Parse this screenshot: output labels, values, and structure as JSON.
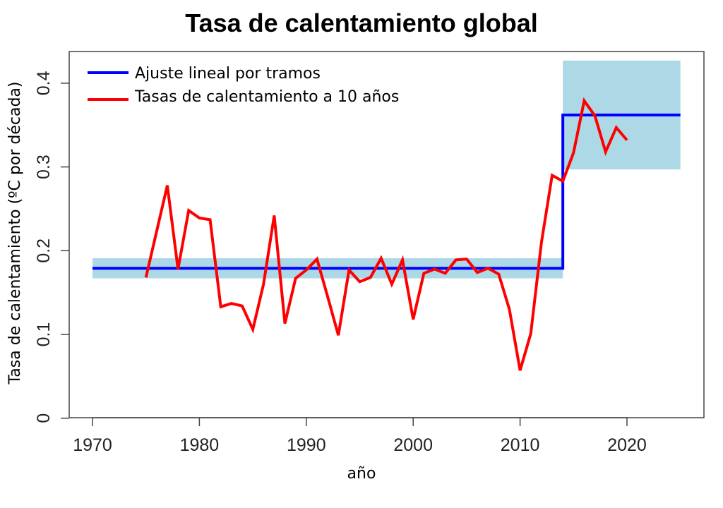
{
  "chart_data": {
    "type": "line",
    "title": "Tasa de calentamiento global",
    "xlabel": "año",
    "ylabel": "Tasa de calentamiento (ºC por década)",
    "xlim": [
      1967.8,
      2027.3
    ],
    "ylim": [
      0,
      0.437
    ],
    "x_ticks": [
      "1970",
      "1980",
      "1990",
      "2000",
      "2010",
      "2020"
    ],
    "y_ticks": [
      "0",
      "0.1",
      "0.2",
      "0.3",
      "0.4"
    ],
    "grid": false,
    "legend_position": "top-left",
    "colors": {
      "fit": "#0000ff",
      "rates": "#ff0000",
      "band": "#add8e6"
    },
    "series": [
      {
        "name": "Ajuste lineal por tramos",
        "type": "step",
        "segments": [
          {
            "x_start": 1970,
            "x_end": 2014,
            "value": 0.179,
            "band": [
              0.167,
              0.191
            ]
          },
          {
            "x_start": 2014,
            "x_end": 2025,
            "value": 0.362,
            "band": [
              0.297,
              0.427
            ]
          }
        ]
      },
      {
        "name": "Tasas de calentamiento a 10 años",
        "x": [
          1975,
          1976,
          1977,
          1978,
          1979,
          1980,
          1981,
          1982,
          1983,
          1984,
          1985,
          1986,
          1987,
          1988,
          1989,
          1990,
          1991,
          1992,
          1993,
          1994,
          1995,
          1996,
          1997,
          1998,
          1999,
          2000,
          2001,
          2002,
          2003,
          2004,
          2005,
          2006,
          2007,
          2008,
          2009,
          2010,
          2011,
          2012,
          2013,
          2014,
          2015,
          2016,
          2017,
          2018,
          2019,
          2020
        ],
        "values": [
          0.168,
          0.223,
          0.278,
          0.178,
          0.248,
          0.239,
          0.237,
          0.133,
          0.137,
          0.134,
          0.106,
          0.16,
          0.242,
          0.113,
          0.167,
          0.177,
          0.19,
          0.145,
          0.099,
          0.177,
          0.163,
          0.168,
          0.191,
          0.16,
          0.189,
          0.118,
          0.173,
          0.178,
          0.173,
          0.189,
          0.19,
          0.174,
          0.179,
          0.172,
          0.13,
          0.057,
          0.101,
          0.21,
          0.29,
          0.283,
          0.317,
          0.379,
          0.361,
          0.318,
          0.347,
          0.332
        ]
      }
    ]
  }
}
